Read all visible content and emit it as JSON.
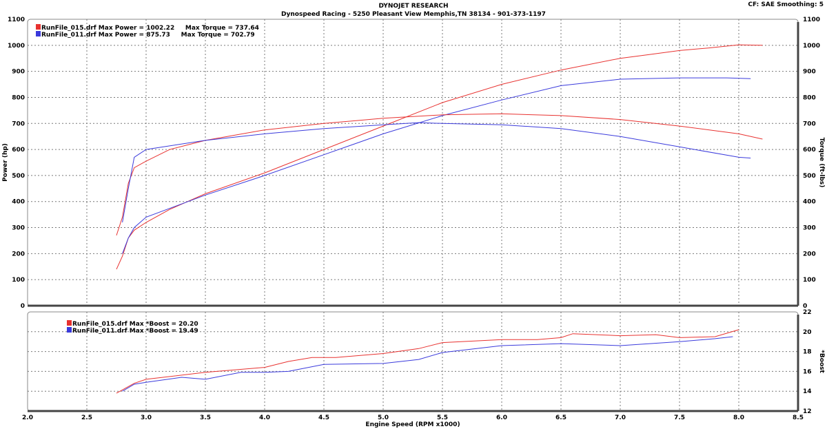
{
  "header": {
    "title": "DYNOJET RESEARCH",
    "subtitle": "Dynospeed  Racing - 5250 Pleasant View Memphis,TN 38134 - 901-373-1197",
    "settings": "CF: SAE  Smoothing: 5"
  },
  "colors": {
    "run_015": "#e8312f",
    "run_011": "#3a3adc"
  },
  "chart_data": [
    {
      "type": "line",
      "ylabel": "Power (hp)",
      "y2label": "Torque (ft-lbs)",
      "xlim": [
        2.0,
        8.5
      ],
      "ylim": [
        0,
        1100
      ],
      "y2lim": [
        0,
        1100
      ],
      "xticks": [
        2.0,
        2.5,
        3.0,
        3.5,
        4.0,
        4.5,
        5.0,
        5.5,
        6.0,
        6.5,
        7.0,
        7.5,
        8.0,
        8.5
      ],
      "yticks": [
        0,
        100,
        200,
        300,
        400,
        500,
        600,
        700,
        800,
        900,
        1000,
        1100
      ],
      "grid": true,
      "legend_position": "top-left",
      "legend": [
        "RunFile_015.drf Max Power = 1002.22     Max Torque = 737.64",
        "RunFile_011.drf Max Power = 875.73     Max Torque = 702.79"
      ],
      "series": [
        {
          "run": "RunFile_015.drf",
          "measure": "power",
          "color": "#e8312f",
          "x": [
            2.75,
            2.8,
            2.85,
            2.9,
            3.0,
            3.2,
            3.5,
            4.0,
            4.5,
            5.0,
            5.5,
            6.0,
            6.5,
            7.0,
            7.25,
            7.5,
            7.75,
            8.0,
            8.2
          ],
          "y": [
            140,
            190,
            260,
            290,
            320,
            370,
            430,
            510,
            600,
            690,
            780,
            850,
            905,
            950,
            965,
            980,
            990,
            1002,
            1000
          ]
        },
        {
          "run": "RunFile_011.drf",
          "measure": "power",
          "color": "#3a3adc",
          "x": [
            2.8,
            2.85,
            2.9,
            3.0,
            3.5,
            4.0,
            4.5,
            5.0,
            5.5,
            6.0,
            6.5,
            7.0,
            7.5,
            7.9,
            8.1
          ],
          "y": [
            200,
            260,
            300,
            340,
            425,
            500,
            580,
            660,
            730,
            790,
            845,
            870,
            875,
            875,
            872
          ]
        },
        {
          "run": "RunFile_015.drf",
          "measure": "torque",
          "color": "#e8312f",
          "x": [
            2.75,
            2.8,
            2.85,
            2.9,
            3.0,
            3.2,
            3.5,
            4.0,
            4.5,
            5.0,
            5.5,
            6.0,
            6.5,
            7.0,
            7.5,
            8.0,
            8.2
          ],
          "y": [
            270,
            340,
            470,
            530,
            555,
            600,
            635,
            675,
            700,
            720,
            733,
            737,
            730,
            715,
            690,
            660,
            640
          ]
        },
        {
          "run": "RunFile_011.drf",
          "measure": "torque",
          "color": "#3a3adc",
          "x": [
            2.8,
            2.85,
            2.9,
            3.0,
            3.5,
            4.0,
            4.5,
            5.0,
            5.3,
            5.5,
            6.0,
            6.5,
            7.0,
            7.5,
            8.0,
            8.1
          ],
          "y": [
            320,
            450,
            570,
            600,
            635,
            660,
            680,
            695,
            703,
            700,
            695,
            680,
            650,
            610,
            570,
            567
          ]
        }
      ]
    },
    {
      "type": "line",
      "xlabel": "Engine Speed (RPM x1000)",
      "y2label": "*Boost",
      "xlim": [
        2.0,
        8.5
      ],
      "ylim": [
        12,
        22
      ],
      "xticks": [
        2.0,
        2.5,
        3.0,
        3.5,
        4.0,
        4.5,
        5.0,
        5.5,
        6.0,
        6.5,
        7.0,
        7.5,
        8.0,
        8.5
      ],
      "yticks": [
        12,
        14,
        16,
        18,
        20,
        22
      ],
      "grid": true,
      "legend_position": "top-left",
      "legend": [
        "RunFile_015.drf Max *Boost = 20.20",
        "RunFile_011.drf Max *Boost = 19.49"
      ],
      "series": [
        {
          "run": "RunFile_015.drf",
          "measure": "boost",
          "color": "#e8312f",
          "x": [
            2.75,
            2.9,
            3.0,
            3.5,
            4.0,
            4.2,
            4.4,
            4.6,
            5.0,
            5.3,
            5.5,
            6.0,
            6.3,
            6.5,
            6.6,
            7.0,
            7.3,
            7.5,
            7.8,
            8.0
          ],
          "y": [
            13.8,
            14.8,
            15.2,
            15.9,
            16.4,
            17.0,
            17.4,
            17.4,
            17.8,
            18.3,
            18.9,
            19.2,
            19.2,
            19.4,
            19.8,
            19.6,
            19.7,
            19.4,
            19.5,
            20.2
          ]
        },
        {
          "run": "RunFile_011.drf",
          "measure": "boost",
          "color": "#3a3adc",
          "x": [
            2.8,
            2.9,
            3.0,
            3.3,
            3.5,
            3.8,
            4.0,
            4.2,
            4.5,
            5.0,
            5.3,
            5.5,
            6.0,
            6.5,
            7.0,
            7.5,
            7.8,
            7.95
          ],
          "y": [
            14.0,
            14.7,
            14.9,
            15.4,
            15.2,
            15.9,
            15.9,
            16.0,
            16.7,
            16.8,
            17.2,
            17.9,
            18.6,
            18.8,
            18.6,
            19.0,
            19.3,
            19.5
          ]
        }
      ]
    }
  ]
}
